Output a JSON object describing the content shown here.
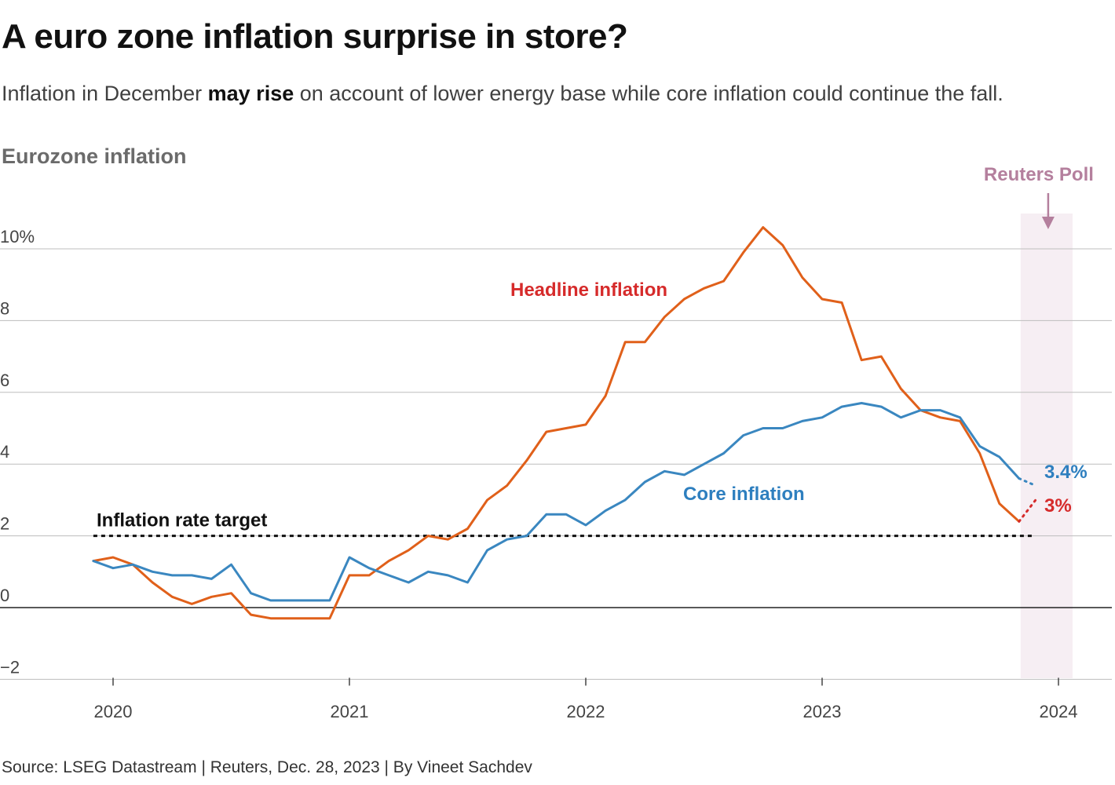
{
  "header": {
    "title": "A euro zone inflation surprise in store?",
    "subtitle_pre": "Inflation in December ",
    "subtitle_bold": "may rise",
    "subtitle_post": " on account of lower energy base while core inflation could continue the fall.",
    "chart_label": "Eurozone inflation"
  },
  "footer": {
    "source": "Source: LSEG Datastream | Reuters, Dec. 28, 2023 | By Vineet Sachdev"
  },
  "colors": {
    "headline": "#e0601a",
    "core": "#3a87c0",
    "headline_label": "#d62b2b",
    "core_label": "#2e7fbf",
    "poll_band": "#f6eef3",
    "poll_label": "#b47f9d",
    "grid": "#bdbdbd",
    "zero": "#222222",
    "target": "#111111"
  },
  "chart_data": {
    "type": "line",
    "x_start": "2019-12",
    "x_step": "month",
    "xlim": [
      2019.75,
      2024.25
    ],
    "ylim": [
      -2.5,
      10.8
    ],
    "xticks": [
      2020,
      2021,
      2022,
      2023,
      2024
    ],
    "xtick_labels": [
      "2020",
      "2021",
      "2022",
      "2023",
      "2024"
    ],
    "yticks": [
      -2,
      0,
      2,
      4,
      6,
      8,
      10
    ],
    "ytick_labels": [
      "−2",
      "0",
      "2",
      "4",
      "6",
      "8",
      "10%"
    ],
    "series": [
      {
        "name": "Headline inflation",
        "label": "Headline inflation",
        "values": [
          1.3,
          1.4,
          1.2,
          0.7,
          0.3,
          0.1,
          0.3,
          0.4,
          -0.2,
          -0.3,
          -0.3,
          -0.3,
          -0.3,
          0.9,
          0.9,
          1.3,
          1.6,
          2.0,
          1.9,
          2.2,
          3.0,
          3.4,
          4.1,
          4.9,
          5.0,
          5.1,
          5.9,
          7.4,
          7.4,
          8.1,
          8.6,
          8.9,
          9.1,
          9.9,
          10.6,
          10.1,
          9.2,
          8.6,
          8.5,
          6.9,
          7.0,
          6.1,
          5.5,
          5.3,
          5.2,
          4.3,
          2.9,
          2.4
        ],
        "forecast": 3.0,
        "forecast_label": "3%"
      },
      {
        "name": "Core inflation",
        "label": "Core inflation",
        "values": [
          1.3,
          1.1,
          1.2,
          1.0,
          0.9,
          0.9,
          0.8,
          1.2,
          0.4,
          0.2,
          0.2,
          0.2,
          0.2,
          1.4,
          1.1,
          0.9,
          0.7,
          1.0,
          0.9,
          0.7,
          1.6,
          1.9,
          2.0,
          2.6,
          2.6,
          2.3,
          2.7,
          3.0,
          3.5,
          3.8,
          3.7,
          4.0,
          4.3,
          4.8,
          5.0,
          5.0,
          5.2,
          5.3,
          5.6,
          5.7,
          5.6,
          5.3,
          5.5,
          5.5,
          5.3,
          4.5,
          4.2,
          3.6
        ],
        "forecast": 3.4,
        "forecast_label": "3.4%"
      }
    ],
    "target": {
      "value": 2,
      "label": "Inflation rate target"
    },
    "poll": {
      "label": "Reuters Poll",
      "period": "2023-12"
    }
  }
}
